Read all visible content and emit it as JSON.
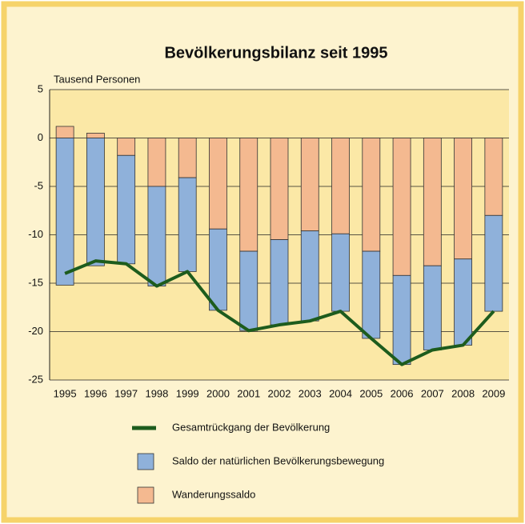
{
  "chart_data": {
    "type": "bar",
    "title": "Bevölkerungsbilanz seit 1995",
    "y_label": "Tausend Personen",
    "categories": [
      "1995",
      "1996",
      "1997",
      "1998",
      "1999",
      "2000",
      "2001",
      "2002",
      "2003",
      "2004",
      "2005",
      "2006",
      "2007",
      "2008",
      "2009"
    ],
    "series": [
      {
        "name": "Gesamtrückgang der Bevölkerung",
        "type": "line",
        "color": "#1d5c1d",
        "values": [
          -14.0,
          -12.7,
          -13.0,
          -15.3,
          -13.8,
          -17.8,
          -19.9,
          -19.3,
          -18.9,
          -17.9,
          -20.7,
          -23.4,
          -21.9,
          -21.4,
          -17.9
        ]
      },
      {
        "name": "Saldo der natürlichen Bevölkerungsbewegung",
        "type": "bar",
        "color": "#8fb1da",
        "values": [
          -15.2,
          -13.2,
          -11.2,
          -10.3,
          -9.7,
          -8.4,
          -8.2,
          -8.8,
          -9.3,
          -8.0,
          -9.0,
          -9.2,
          -8.7,
          -8.9,
          -9.9
        ]
      },
      {
        "name": "Wanderungssaldo",
        "type": "bar",
        "color": "#f4b990",
        "values": [
          1.2,
          0.5,
          -1.8,
          -5.0,
          -4.1,
          -9.4,
          -11.7,
          -10.5,
          -9.6,
          -9.9,
          -11.7,
          -14.2,
          -13.2,
          -12.5,
          -8.0
        ]
      }
    ],
    "ylim": [
      -25,
      5
    ],
    "yticks": [
      -25,
      -20,
      -15,
      -10,
      -5,
      0,
      5
    ],
    "grid": true,
    "stacked": true
  }
}
